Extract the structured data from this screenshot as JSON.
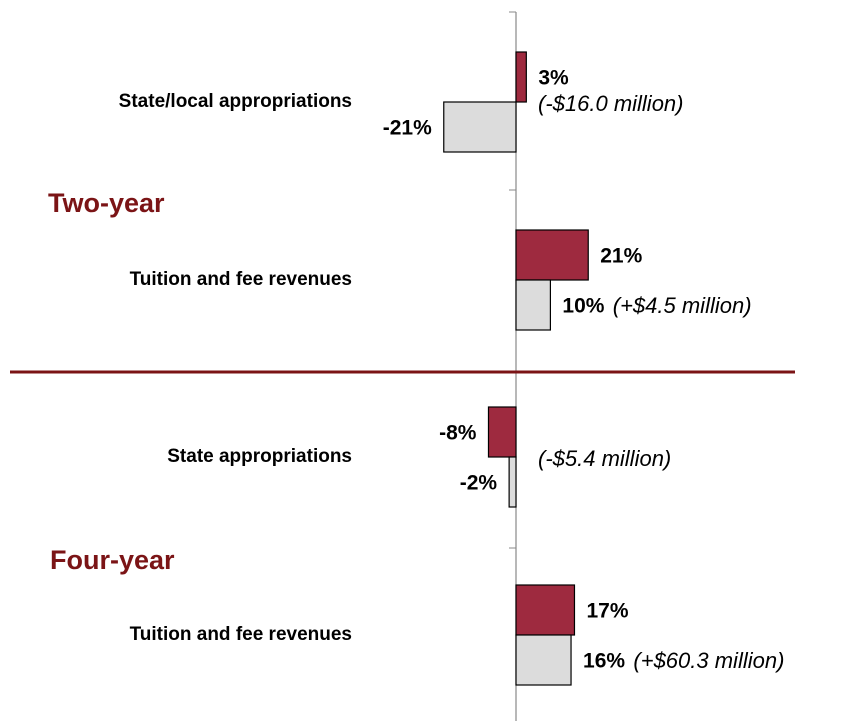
{
  "chart_data": {
    "type": "bar",
    "orientation": "horizontal",
    "groups": [
      {
        "name": "Two-year",
        "categories": [
          "State/local appropriations",
          "Tuition and fee revenues"
        ]
      },
      {
        "name": "Four-year",
        "categories": [
          "State appropriations",
          "Tuition and fee revenues"
        ]
      }
    ],
    "series": [
      {
        "color": "#9e2a3f",
        "values": [
          3,
          21,
          -8,
          17
        ],
        "value_labels": [
          "3%",
          "21%",
          "-8%",
          "17%"
        ]
      },
      {
        "color": "#dcdcdc",
        "values": [
          -21,
          10,
          -2,
          16
        ],
        "value_labels": [
          "-21%",
          "10%",
          "-2%",
          "16%"
        ]
      }
    ],
    "annotations": [
      "(-$16.0 million)",
      "(+$4.5 million)",
      "(-$5.4 million)",
      "(+$60.3 million)"
    ],
    "xlim": [
      -25,
      25
    ]
  }
}
